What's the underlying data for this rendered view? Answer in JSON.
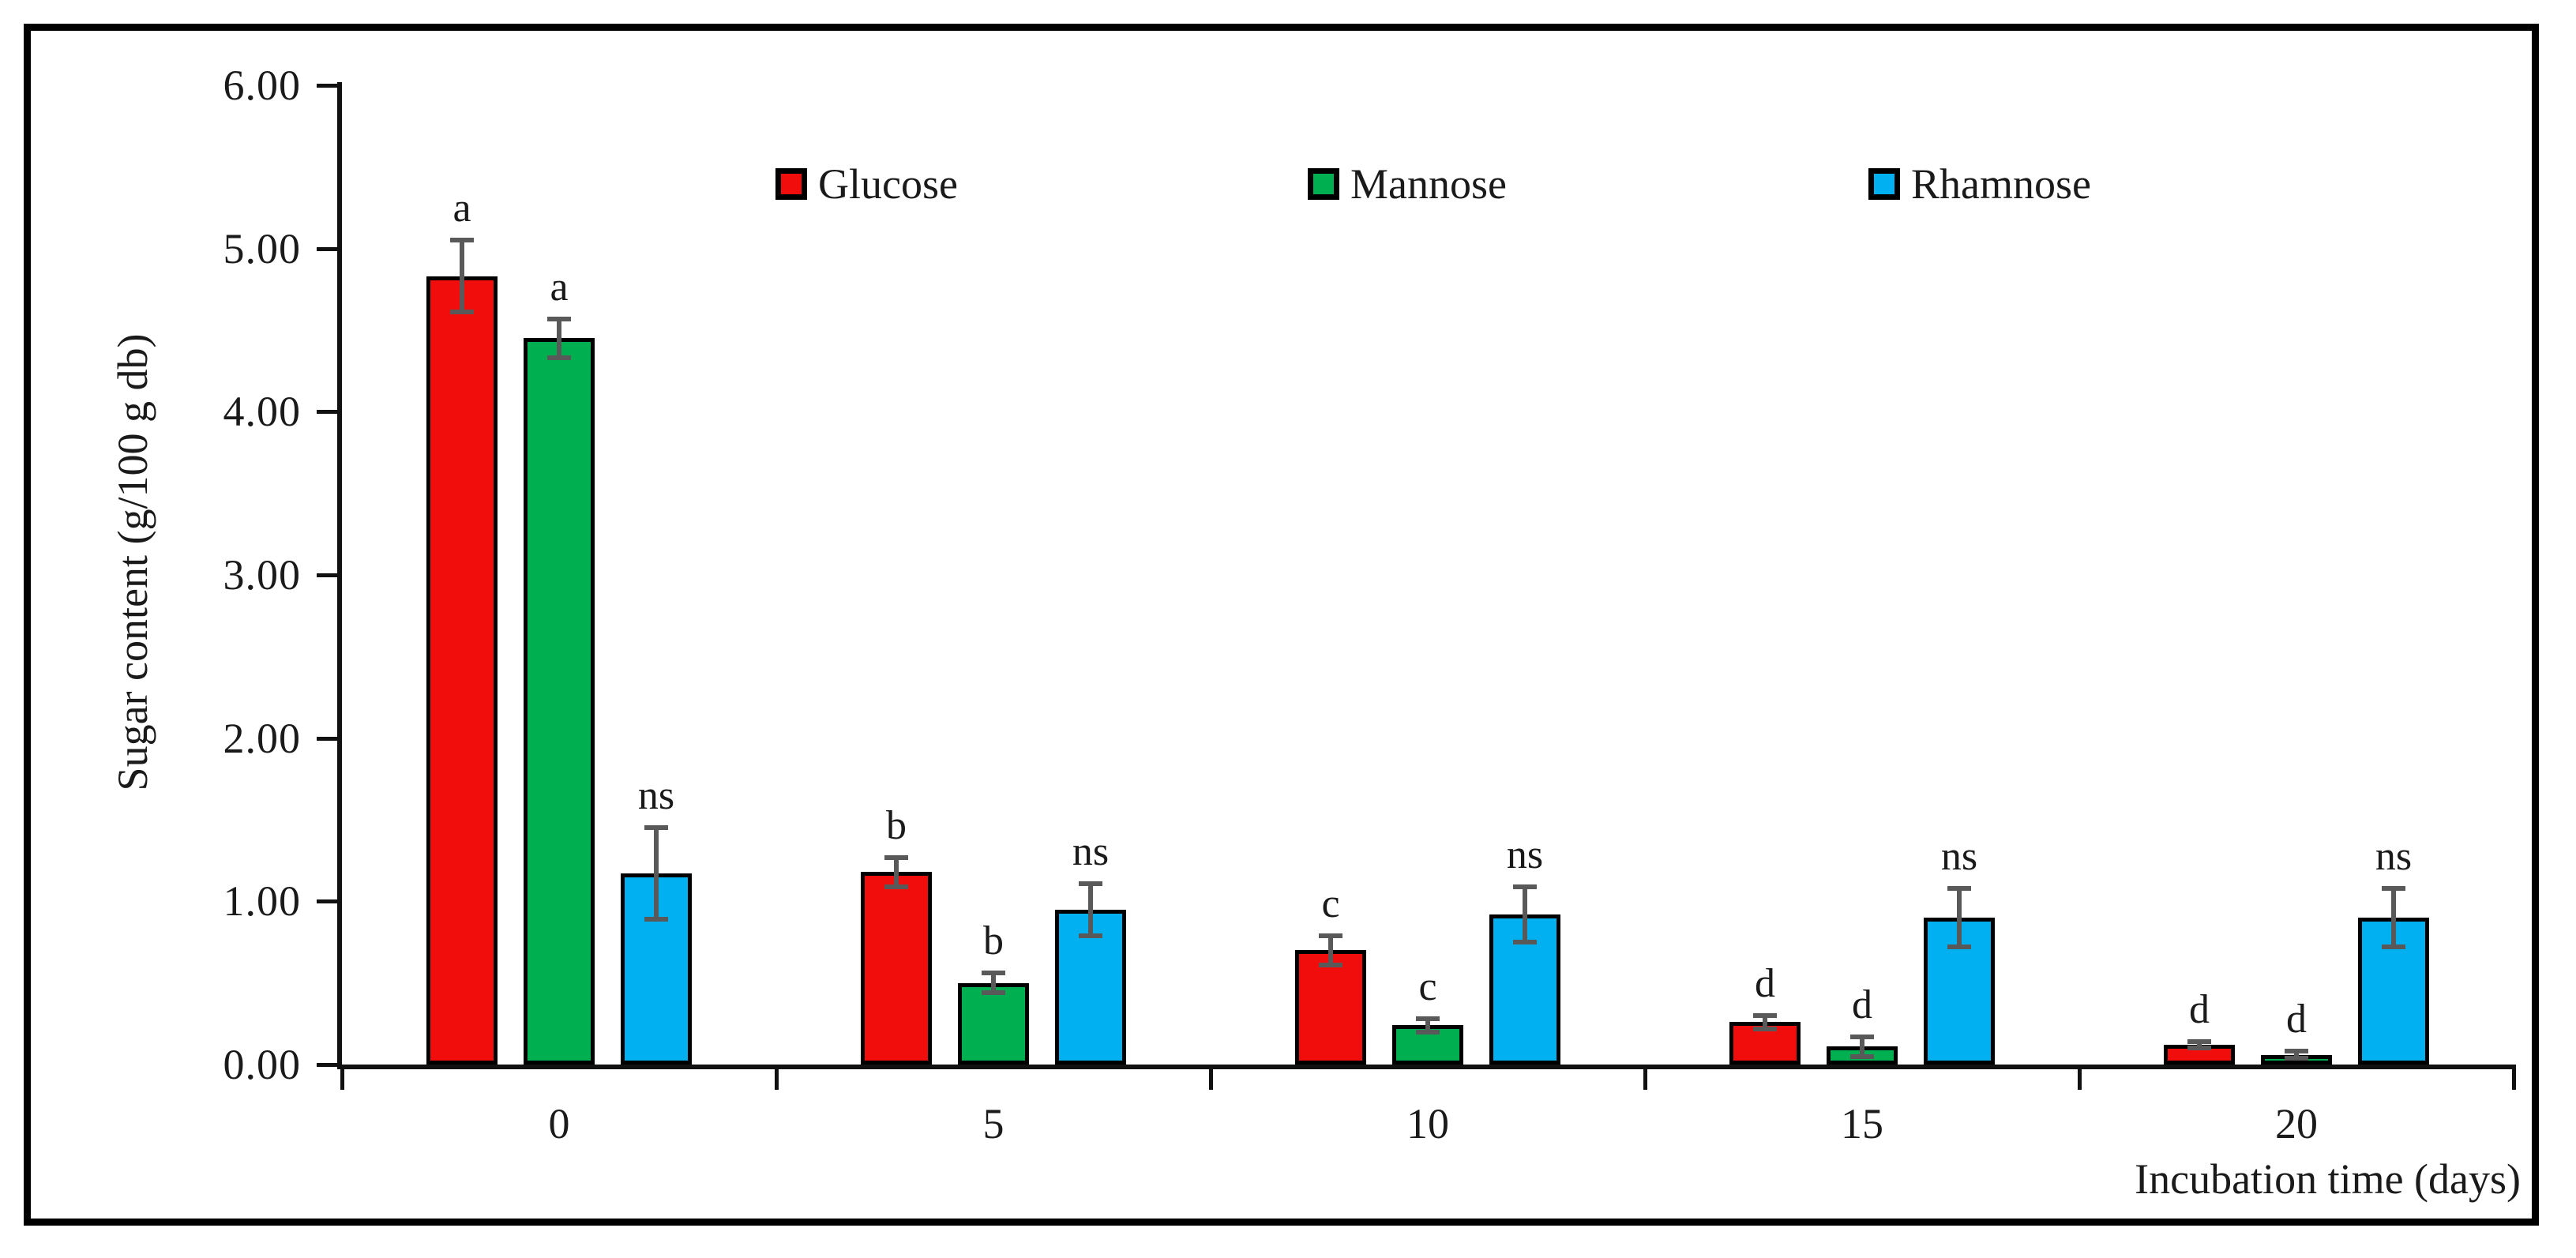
{
  "chart_data": {
    "type": "bar",
    "title": "",
    "xlabel": "Incubation time (days)",
    "ylabel": "Sugar content (g/100 g db)",
    "categories": [
      "0",
      "5",
      "10",
      "15",
      "20"
    ],
    "y_ticks": [
      "0.00",
      "1.00",
      "2.00",
      "3.00",
      "4.00",
      "5.00",
      "6.00"
    ],
    "ylim": [
      0,
      6
    ],
    "grid": false,
    "legend_position": "top-inside",
    "bar_border_color": "#000000",
    "error_bar_color": "#595959",
    "series": [
      {
        "name": "Glucose",
        "color": "#F20D0D",
        "values": [
          4.83,
          1.18,
          0.7,
          0.26,
          0.12
        ],
        "errors": [
          0.22,
          0.09,
          0.09,
          0.04,
          0.02
        ],
        "sig_labels": [
          "a",
          "b",
          "c",
          "d",
          "d"
        ]
      },
      {
        "name": "Mannose",
        "color": "#00B050",
        "values": [
          4.45,
          0.5,
          0.24,
          0.11,
          0.06
        ],
        "errors": [
          0.12,
          0.06,
          0.04,
          0.06,
          0.02
        ],
        "sig_labels": [
          "a",
          "b",
          "c",
          "d",
          "d"
        ]
      },
      {
        "name": "Rhamnose",
        "color": "#00B0F0",
        "values": [
          1.17,
          0.95,
          0.92,
          0.9,
          0.9
        ],
        "errors": [
          0.28,
          0.16,
          0.17,
          0.18,
          0.18
        ],
        "sig_labels": [
          "ns",
          "ns",
          "ns",
          "ns",
          "ns"
        ]
      }
    ]
  }
}
